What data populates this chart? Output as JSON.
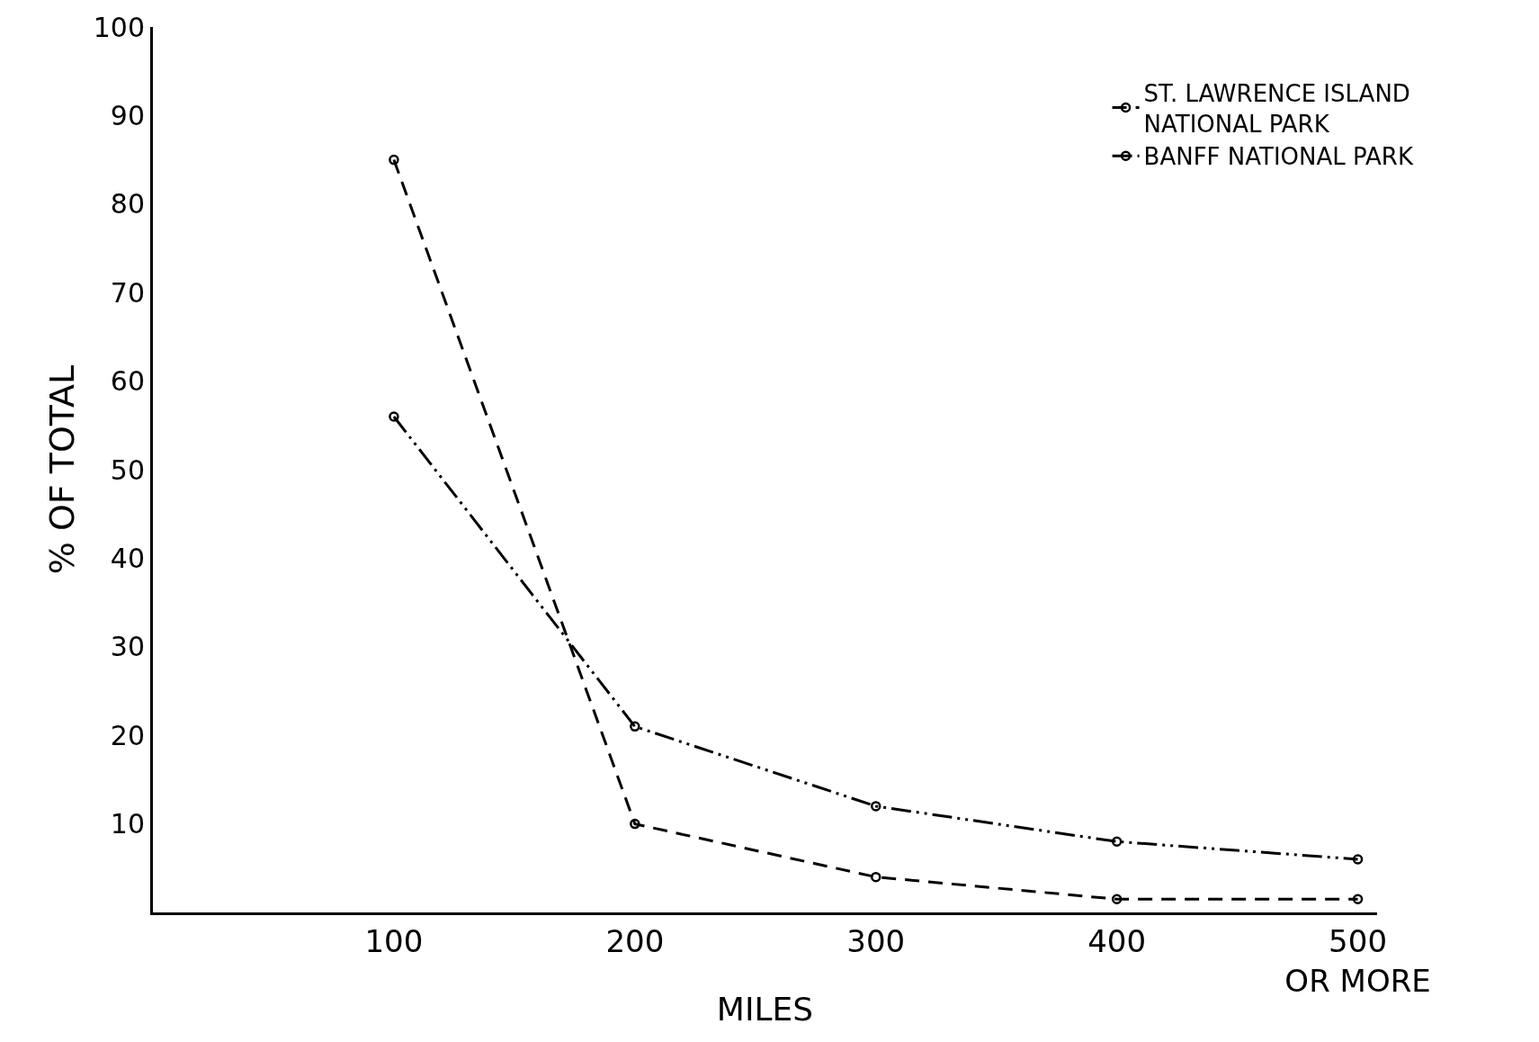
{
  "chart_data": {
    "type": "line",
    "xlabel": "MILES",
    "ylabel": "% OF TOTAL",
    "x": [
      100,
      200,
      300,
      400,
      500
    ],
    "series": [
      {
        "name": "ST. LAWRENCE ISLAND\nNATIONAL PARK",
        "color": "#000000",
        "line_style": "dashed",
        "values": [
          85,
          10,
          4,
          1.5,
          1.5
        ]
      },
      {
        "name": "BANFF NATIONAL PARK",
        "color": "#000000",
        "line_style": "dashdot",
        "values": [
          56,
          21,
          12,
          8,
          6
        ]
      }
    ],
    "xlim": [
      0,
      508
    ],
    "xticks": [
      100,
      200,
      300,
      400,
      {
        "value": 500,
        "label": "500\nOR MORE"
      }
    ],
    "ylim": [
      0,
      100
    ],
    "yticks": [
      10,
      20,
      30,
      40,
      50,
      60,
      70,
      80,
      90,
      100
    ],
    "grid": false,
    "legend": "top right",
    "marker": "circle"
  }
}
